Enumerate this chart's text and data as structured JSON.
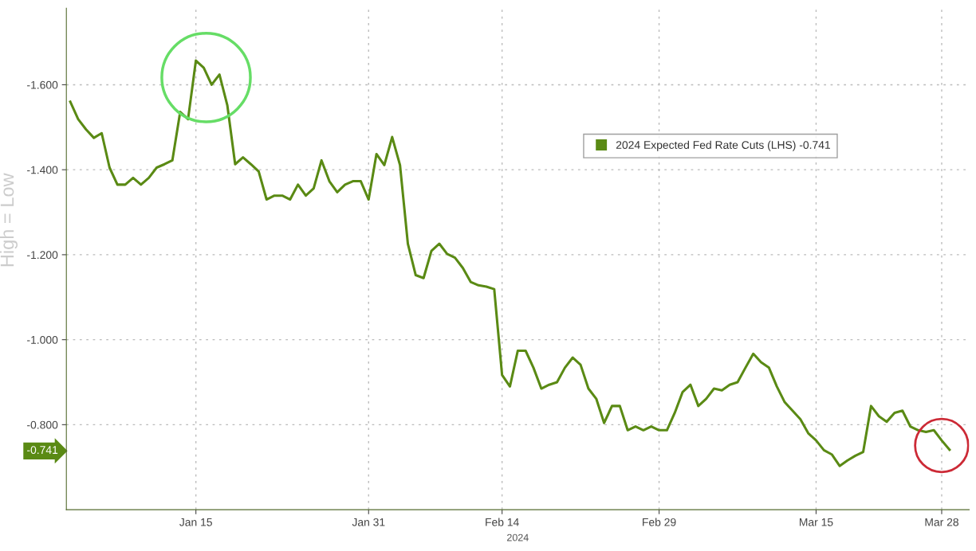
{
  "chart_data": {
    "type": "line",
    "categories": [
      null,
      null,
      null,
      null,
      null,
      null,
      null,
      null,
      null,
      null,
      null,
      null,
      null,
      null,
      null,
      null,
      "Jan 15",
      null,
      null,
      null,
      null,
      null,
      null,
      null,
      null,
      null,
      null,
      null,
      null,
      null,
      null,
      null,
      null,
      null,
      null,
      null,
      null,
      null,
      "Jan 31",
      null,
      null,
      null,
      null,
      null,
      null,
      null,
      null,
      null,
      null,
      null,
      null,
      null,
      null,
      null,
      null,
      "Feb 14",
      null,
      null,
      null,
      null,
      null,
      null,
      null,
      null,
      null,
      null,
      null,
      null,
      null,
      null,
      null,
      null,
      null,
      null,
      null,
      "Feb 29",
      null,
      null,
      null,
      null,
      null,
      null,
      null,
      null,
      null,
      null,
      null,
      null,
      null,
      null,
      null,
      null,
      null,
      null,
      null,
      "Mar 15",
      null,
      null,
      null,
      null,
      null,
      null,
      null,
      null,
      null,
      null,
      null,
      null,
      null,
      null,
      null,
      "Mar 28",
      null
    ],
    "series": [
      {
        "name": "2024 Expected Fed Rate Cuts (LHS) -0.741",
        "color": "#5a8a14",
        "values": [
          -1.56,
          -1.519,
          -1.495,
          -1.475,
          -1.486,
          -1.405,
          -1.365,
          -1.365,
          -1.381,
          -1.365,
          -1.381,
          -1.405,
          -1.413,
          -1.422,
          -1.536,
          -1.519,
          -1.657,
          -1.64,
          -1.6,
          -1.624,
          -1.552,
          -1.413,
          -1.429,
          -1.413,
          -1.396,
          -1.33,
          -1.339,
          -1.339,
          -1.33,
          -1.365,
          -1.339,
          -1.356,
          -1.422,
          -1.373,
          -1.347,
          -1.365,
          -1.373,
          -1.373,
          -1.33,
          -1.437,
          -1.411,
          -1.477,
          -1.411,
          -1.226,
          -1.152,
          -1.145,
          -1.209,
          -1.226,
          -1.202,
          -1.193,
          -1.169,
          -1.136,
          -1.128,
          -1.125,
          -1.119,
          -0.917,
          -0.89,
          -0.974,
          -0.974,
          -0.934,
          -0.885,
          -0.894,
          -0.9,
          -0.934,
          -0.958,
          -0.941,
          -0.885,
          -0.861,
          -0.804,
          -0.844,
          -0.844,
          -0.787,
          -0.796,
          -0.787,
          -0.796,
          -0.787,
          -0.787,
          -0.828,
          -0.877,
          -0.894,
          -0.844,
          -0.861,
          -0.885,
          -0.881,
          -0.894,
          -0.9,
          -0.934,
          -0.967,
          -0.947,
          -0.934,
          -0.89,
          -0.853,
          -0.833,
          -0.813,
          -0.78,
          -0.763,
          -0.74,
          -0.73,
          -0.703,
          -0.716,
          -0.727,
          -0.736,
          -0.844,
          -0.82,
          -0.807,
          -0.828,
          -0.833,
          -0.796,
          -0.787,
          -0.783,
          -0.787,
          -0.763,
          -0.741
        ]
      }
    ],
    "ylim": [
      -0.6,
      -1.78
    ],
    "yticks": [
      {
        "value": -1.6,
        "label": "-1.600"
      },
      {
        "value": -1.4,
        "label": "-1.400"
      },
      {
        "value": -1.2,
        "label": "-1.200"
      },
      {
        "value": -1.0,
        "label": "-1.000"
      },
      {
        "value": -0.8,
        "label": "-0.800"
      },
      {
        "value": -0.741,
        "label": "-0.741"
      }
    ],
    "grid": true,
    "legend": "top right",
    "line_style": "solid",
    "annotations": [
      "2024",
      "High = Low"
    ]
  }
}
